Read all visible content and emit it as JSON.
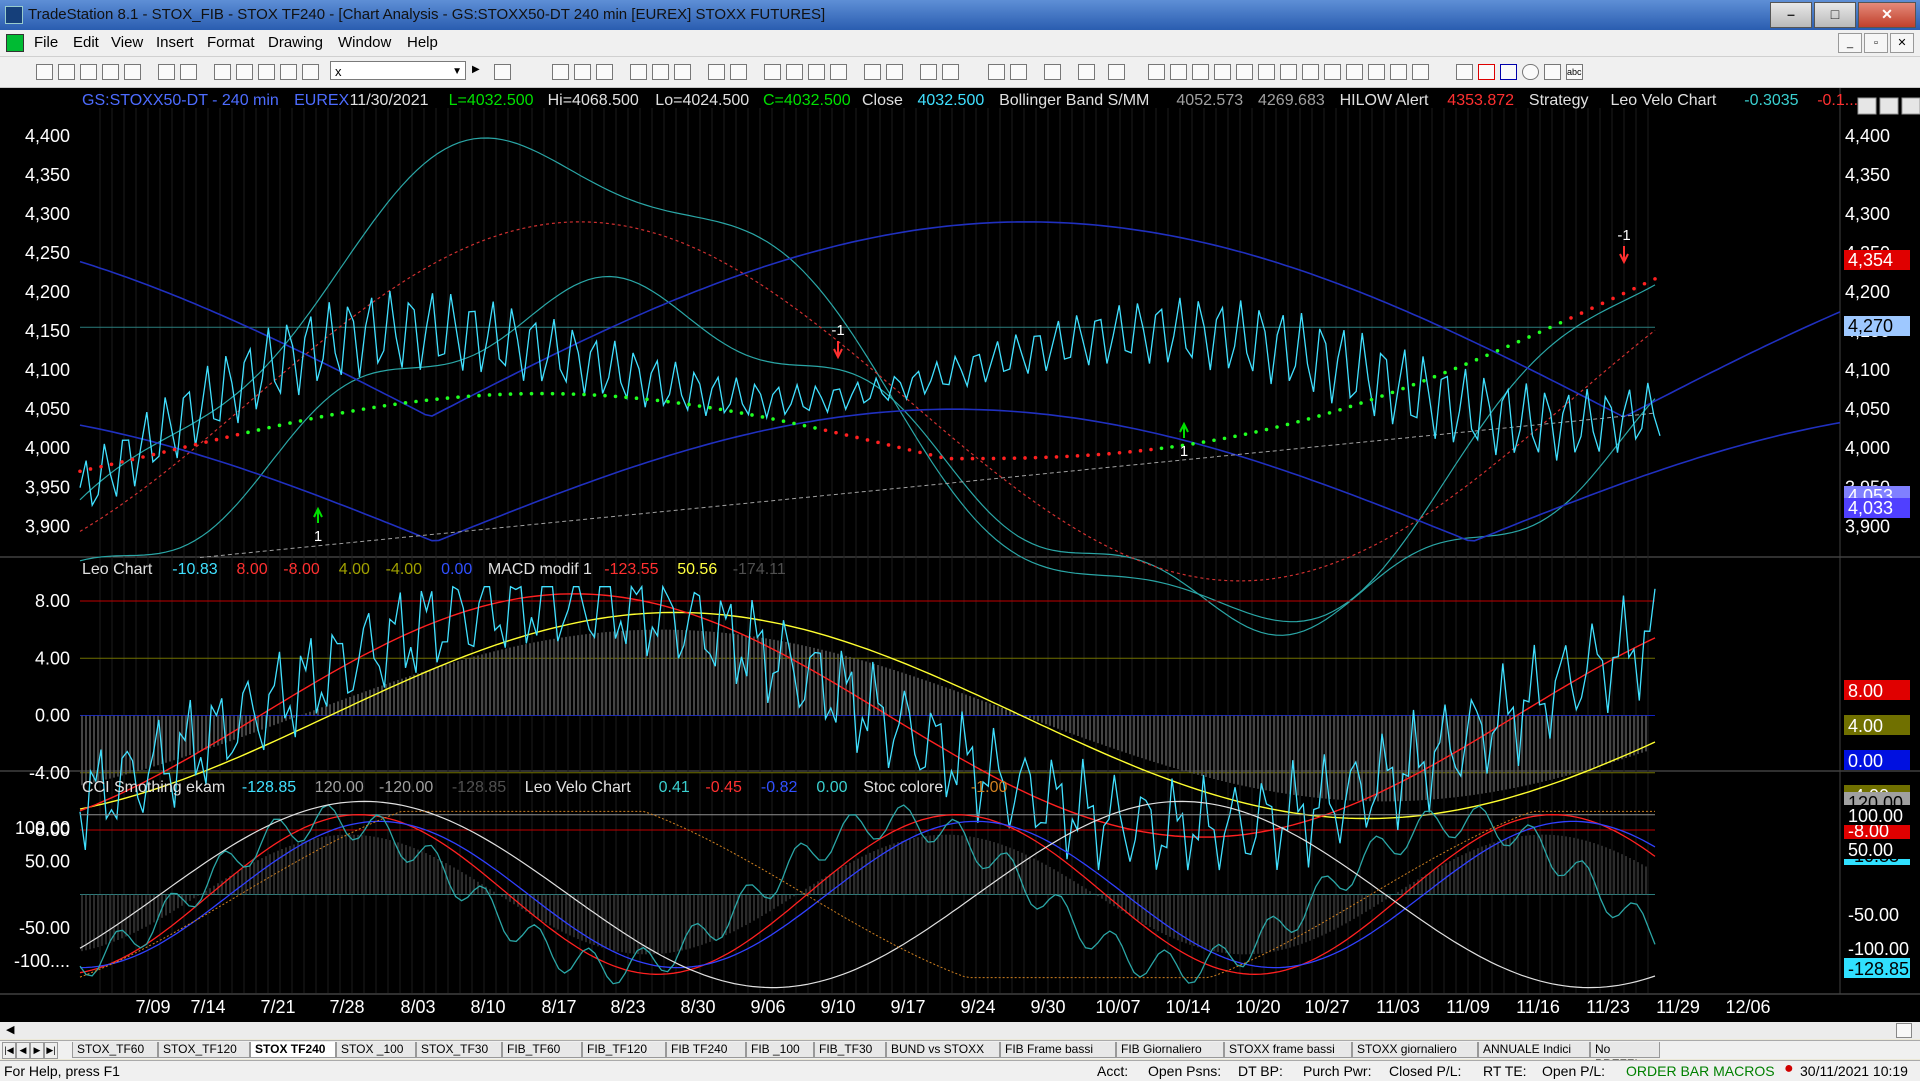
{
  "window": {
    "title": "TradeStation 8.1 - STOX_FIB - STOX TF240 - [Chart Analysis - GS:STOXX50-DT  240 min  [EUREX] STOXX FUTURES]",
    "minimize": "–",
    "maximize": "□",
    "close": "✕"
  },
  "menu": {
    "items": [
      "File",
      "Edit",
      "View",
      "Insert",
      "Format",
      "Drawing",
      "Window",
      "Help"
    ]
  },
  "toolbar": {
    "symbol_value": "x"
  },
  "price_panel": {
    "header": [
      {
        "text": "GS:STOXX50-DT - 240 min",
        "color": "#4d6cff"
      },
      {
        "text": "EUREX",
        "color": "#4d6cff"
      },
      {
        "text": "11/30/2021",
        "color": "#e0e0e0"
      },
      {
        "text": "L=4032.500",
        "color": "#00e000"
      },
      {
        "text": "Hi=4068.500",
        "color": "#e0e0e0"
      },
      {
        "text": "Lo=4024.500",
        "color": "#e0e0e0"
      },
      {
        "text": "C=4032.500",
        "color": "#00e000"
      },
      {
        "text": "Close",
        "color": "#e0e0e0"
      },
      {
        "text": "4032.500",
        "color": "#40e0ff"
      },
      {
        "text": "Bollinger Band S/MM",
        "color": "#e0e0e0"
      },
      {
        "text": "4052.573",
        "color": "#a0a0a0"
      },
      {
        "text": "4269.683",
        "color": "#a0a0a0"
      },
      {
        "text": "HILOW Alert",
        "color": "#e0e0e0"
      },
      {
        "text": "4353.872",
        "color": "#ff3030"
      },
      {
        "text": "Strategy",
        "color": "#e0e0e0"
      },
      {
        "text": "Leo Velo Chart",
        "color": "#e0e0e0"
      },
      {
        "text": "-0.3035",
        "color": "#3ad0d0"
      },
      {
        "text": "-0.1...",
        "color": "#ff3030"
      }
    ],
    "y_ticks": [
      "4,400",
      "4,350",
      "4,300",
      "4,250",
      "4,200",
      "4,150",
      "4,100",
      "4,050",
      "4,000",
      "3,950",
      "3,900"
    ],
    "badges": [
      {
        "text": "4,354",
        "bg": "#e00000",
        "fg": "#ffffff"
      },
      {
        "text": "4,270",
        "bg": "#9ec8ff",
        "fg": "#000000"
      },
      {
        "text": "4,053",
        "bg": "#8080ff",
        "fg": "#ffffff"
      },
      {
        "text": "4,033",
        "bg": "#5040ff",
        "fg": "#ffffff"
      }
    ],
    "signals": [
      {
        "label": "1",
        "color": "#00e000"
      },
      {
        "label": "-1",
        "color": "#ff3030"
      },
      {
        "label": "1",
        "color": "#00e000"
      },
      {
        "label": "-1",
        "color": "#ff3030"
      }
    ]
  },
  "macd_panel": {
    "header": [
      {
        "text": "Leo Chart",
        "color": "#e0e0e0"
      },
      {
        "text": "-10.83",
        "color": "#40e0ff"
      },
      {
        "text": "8.00",
        "color": "#ff3030"
      },
      {
        "text": "-8.00",
        "color": "#ff3030"
      },
      {
        "text": "4.00",
        "color": "#a0a000"
      },
      {
        "text": "-4.00",
        "color": "#a0a000"
      },
      {
        "text": "0.00",
        "color": "#3050ff"
      },
      {
        "text": "MACD modif 1",
        "color": "#e0e0e0"
      },
      {
        "text": "-123.55",
        "color": "#ff3030"
      },
      {
        "text": "50.56",
        "color": "#ffff40"
      },
      {
        "text": "-174.11",
        "color": "#505050"
      }
    ],
    "y_ticks": [
      "8.00",
      "4.00",
      "0.00",
      "-4.00",
      "-8.00"
    ],
    "badges": [
      {
        "text": "8.00",
        "bg": "#e00000",
        "fg": "#ffffff"
      },
      {
        "text": "4.00",
        "bg": "#707000",
        "fg": "#ffffff"
      },
      {
        "text": "0.00",
        "bg": "#0010e0",
        "fg": "#ffffff"
      },
      {
        "text": "-4.00",
        "bg": "#707000",
        "fg": "#ffffff"
      },
      {
        "text": "-8.00",
        "bg": "#e00000",
        "fg": "#ffffff"
      },
      {
        "text": "-10.83",
        "bg": "#30e0ff",
        "fg": "#000000"
      }
    ]
  },
  "cci_panel": {
    "header": [
      {
        "text": "CCI Smothing ekam",
        "color": "#e0e0e0"
      },
      {
        "text": "-128.85",
        "color": "#40e0ff"
      },
      {
        "text": "120.00",
        "color": "#a0a0a0"
      },
      {
        "text": "-120.00",
        "color": "#a0a0a0"
      },
      {
        "text": "-128.85",
        "color": "#505050"
      },
      {
        "text": "Leo Velo Chart",
        "color": "#e0e0e0"
      },
      {
        "text": "0.41",
        "color": "#3ad0d0"
      },
      {
        "text": "-0.45",
        "color": "#ff3030"
      },
      {
        "text": "-0.82",
        "color": "#3050ff"
      },
      {
        "text": "0.00",
        "color": "#3ad0d0"
      },
      {
        "text": "Stoc colore",
        "color": "#e0e0e0"
      },
      {
        "text": "-1.00",
        "color": "#d08020"
      }
    ],
    "y_ticks": [
      "100.00",
      "50.00",
      "-50.00",
      "-100...."
    ],
    "badges": [
      {
        "text": "120.00",
        "bg": "#a0a0a0",
        "fg": "#000000"
      },
      {
        "text": "100.00",
        "bg": "#000000",
        "fg": "#ffffff"
      },
      {
        "text": "50.00",
        "bg": "#000000",
        "fg": "#ffffff"
      },
      {
        "text": "-50.00",
        "bg": "#000000",
        "fg": "#ffffff"
      },
      {
        "text": "-100.00",
        "bg": "#000000",
        "fg": "#ffffff"
      },
      {
        "text": "-128.85",
        "bg": "#30e0ff",
        "fg": "#000000"
      }
    ]
  },
  "x_axis": {
    "labels": [
      "7/09",
      "7/14",
      "7/21",
      "7/28",
      "8/03",
      "8/10",
      "8/17",
      "8/23",
      "8/30",
      "9/06",
      "9/10",
      "9/17",
      "9/24",
      "9/30",
      "10/07",
      "10/14",
      "10/20",
      "10/27",
      "11/03",
      "11/09",
      "11/16",
      "11/23",
      "11/29",
      "12/06"
    ]
  },
  "tabs": {
    "items": [
      "STOX_TF60",
      "STOX_TF120",
      "STOX TF240",
      "STOX _100",
      "STOX_TF30",
      "FIB_TF60",
      "FIB_TF120",
      "FIB TF240",
      "FIB _100",
      "FIB_TF30",
      "BUND vs STOXX",
      "FIB Frame bassi",
      "FIB Giornaliero",
      "STOXX frame bassi",
      "STOXX giornaliero",
      "ANNUALE Indici",
      "No PREZZI"
    ],
    "active": "STOX TF240"
  },
  "status": {
    "help": "For Help, press F1",
    "acct": "Acct:",
    "open_psns": "Open Psns:",
    "dt_bp": "DT BP:",
    "purch_pwr": "Purch Pwr:",
    "closed_pl": "Closed P/L:",
    "rt_te": "RT TE:",
    "open_pl": "Open P/L:",
    "macros": "ORDER BAR  MACROS",
    "datetime": "30/11/2021 10:19"
  }
}
